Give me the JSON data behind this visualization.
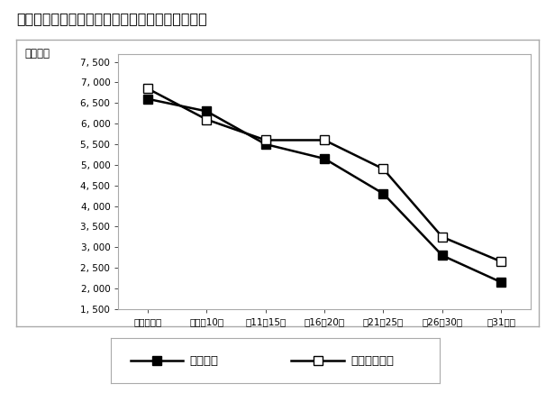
{
  "title": "図表６－１　中古マンションの築年帯別平均価格",
  "ylabel": "（万円）",
  "categories": [
    "築０～５年",
    "築６～10年",
    "築11～15年",
    "築16～20年",
    "築21～25年",
    "築26～30年",
    "築31年～"
  ],
  "series_contract": [
    6600,
    6300,
    5500,
    5150,
    4300,
    2800,
    2150
  ],
  "series_new": [
    6850,
    6100,
    5600,
    5600,
    4900,
    3250,
    2650
  ],
  "series_contract_label": "成約物件",
  "series_new_label": "新規登録物件",
  "yticks": [
    1500,
    2000,
    2500,
    3000,
    3500,
    4000,
    4500,
    5000,
    5500,
    6000,
    6500,
    7000,
    7500
  ],
  "ylim": [
    1500,
    7700
  ],
  "line_color": "#000000",
  "bg_color": "#ffffff",
  "border_color": "#aaaaaa"
}
